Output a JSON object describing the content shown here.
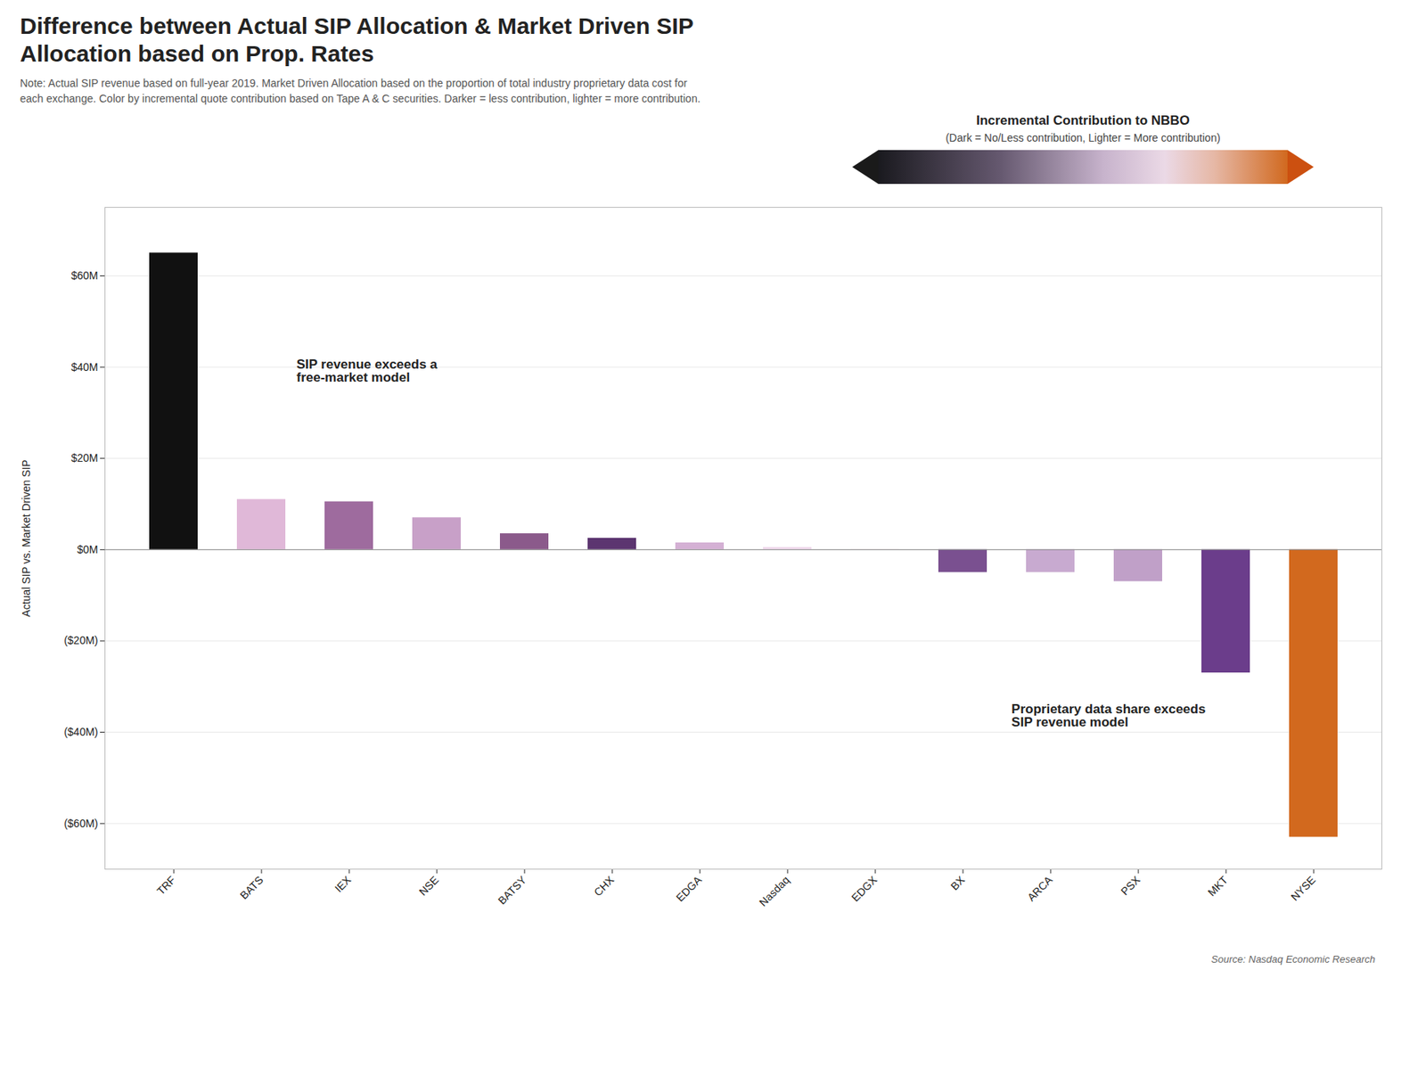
{
  "chart_data": {
    "type": "bar",
    "title": "Difference between Actual SIP Allocation & Market Driven SIP\nAllocation based on Prop. Rates",
    "note": "Note: Actual SIP revenue based on full-year 2019. Market Driven Allocation based on the proportion of total industry proprietary data cost for\neach exchange. Color by incremental quote contribution based on Tape A & C securities. Darker = less contribution, lighter = more contribution.",
    "categories": [
      "TRF",
      "BATS",
      "IEX",
      "NSE",
      "BATSY",
      "CHX",
      "EDGA",
      "Nasdaq",
      "EDGX",
      "BX",
      "ARCA",
      "PSX",
      "MKT",
      "NYSE"
    ],
    "values": [
      65,
      11,
      10.5,
      7,
      3.5,
      2.5,
      1.5,
      0.5,
      0.1,
      -5,
      -5,
      -7,
      -27,
      -63
    ],
    "colors": [
      "#111111",
      "#e0b8d8",
      "#9e6b9e",
      "#c8a0c8",
      "#8b5a8b",
      "#5c3570",
      "#d4b0d4",
      "#f0d8ec",
      "#f8eef4",
      "#7a5090",
      "#c8aad0",
      "#c0a0c8",
      "#6b3d8b",
      "#d2691e"
    ],
    "ylabel": "Actual SIP vs. Market Driven SIP",
    "ylim": [
      -70,
      75
    ],
    "yticks": [
      {
        "value": -60,
        "label": "($60M)"
      },
      {
        "value": -40,
        "label": "($40M)"
      },
      {
        "value": -20,
        "label": "($20M)"
      },
      {
        "value": 0,
        "label": "$0M"
      },
      {
        "value": 20,
        "label": "$20M"
      },
      {
        "value": 40,
        "label": "$40M"
      },
      {
        "value": 60,
        "label": "$60M"
      }
    ],
    "grid": true,
    "annotations": [
      "SIP revenue exceeds a\nfree-market model",
      "Proprietary data share exceeds\nSIP revenue model"
    ],
    "legend_title": "Incremental Contribution to NBBO",
    "legend_subtitle": "(Dark = No/Less contribution, Lighter = More contribution)",
    "source": "Source: Nasdaq Economic Research"
  }
}
